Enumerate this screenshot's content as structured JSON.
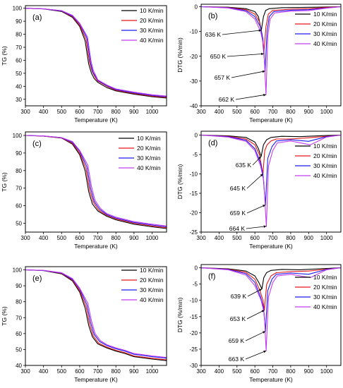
{
  "chart_data": [
    {
      "type": "line",
      "panel_label": "(a)",
      "xlabel": "Temperature (K)",
      "ylabel": "TG (%)",
      "xlim": [
        300,
        1080
      ],
      "ylim": [
        25,
        102
      ],
      "xticks": [
        300,
        400,
        500,
        600,
        700,
        800,
        900,
        1000
      ],
      "yticks": [
        30,
        40,
        50,
        60,
        70,
        80,
        90,
        100
      ],
      "legend": "top-right",
      "series": [
        {
          "name": "10 K/min",
          "color": "#000000",
          "x": [
            300,
            400,
            500,
            560,
            600,
            630,
            650,
            665,
            680,
            700,
            750,
            800,
            900,
            1000,
            1080
          ],
          "y": [
            100,
            99.5,
            97.5,
            93,
            86,
            75,
            57,
            50,
            46,
            43,
            39,
            36.5,
            34,
            32,
            31
          ]
        },
        {
          "name": "20 K/min",
          "color": "#e8171a",
          "x": [
            300,
            400,
            500,
            560,
            600,
            635,
            655,
            670,
            685,
            700,
            750,
            800,
            900,
            1000,
            1080
          ],
          "y": [
            100,
            99.5,
            97.8,
            93.5,
            87,
            76,
            58,
            51,
            47,
            44,
            40,
            37,
            34.5,
            32.5,
            31.5
          ]
        },
        {
          "name": "30 K/min",
          "color": "#1c1cf0",
          "x": [
            300,
            400,
            500,
            560,
            600,
            640,
            660,
            673,
            688,
            700,
            750,
            800,
            900,
            1000,
            1080
          ],
          "y": [
            100,
            99.5,
            98,
            94,
            88,
            77,
            58,
            51,
            47.5,
            44.5,
            40.5,
            37.5,
            35,
            33,
            32
          ]
        },
        {
          "name": "40 K/min",
          "color": "#c43cf0",
          "x": [
            300,
            400,
            500,
            560,
            600,
            643,
            663,
            676,
            690,
            700,
            750,
            800,
            900,
            1000,
            1080
          ],
          "y": [
            100,
            99.6,
            98.2,
            94.5,
            88.5,
            78,
            59,
            52,
            48,
            45,
            41,
            38,
            35.5,
            33.5,
            32.5
          ]
        }
      ]
    },
    {
      "type": "line",
      "panel_label": "(b)",
      "xlabel": "Temperature (K)",
      "ylabel": "DTG (%/min)",
      "xlim": [
        300,
        1080
      ],
      "ylim": [
        -40,
        1
      ],
      "xticks": [
        300,
        400,
        500,
        600,
        700,
        800,
        900,
        1000
      ],
      "yticks": [
        0,
        -10,
        -20,
        -30,
        -40
      ],
      "legend": "top-right",
      "annotations": [
        {
          "text": "636 K",
          "x": 636,
          "y": -9.5
        },
        {
          "text": "650 K",
          "x": 650,
          "y": -19
        },
        {
          "text": "657 K",
          "x": 657,
          "y": -26
        },
        {
          "text": "662 K",
          "x": 662,
          "y": -35.5
        }
      ],
      "series": [
        {
          "name": "10 K/min",
          "color": "#000000",
          "x": [
            300,
            450,
            550,
            600,
            620,
            636,
            648,
            660,
            680,
            750,
            850,
            1000,
            1080
          ],
          "y": [
            0,
            -0.2,
            -0.8,
            -2,
            -4,
            -9.5,
            -4,
            -1.5,
            -0.8,
            -0.4,
            -0.3,
            -0.1,
            0
          ]
        },
        {
          "name": "20 K/min",
          "color": "#e8171a",
          "x": [
            300,
            450,
            550,
            600,
            625,
            640,
            650,
            662,
            675,
            700,
            800,
            900,
            1000,
            1080
          ],
          "y": [
            0,
            -0.3,
            -1.2,
            -3,
            -6,
            -11,
            -19,
            -8,
            -3,
            -1.5,
            -1,
            -0.8,
            -0.3,
            0
          ]
        },
        {
          "name": "30 K/min",
          "color": "#1c1cf0",
          "x": [
            300,
            450,
            550,
            600,
            630,
            645,
            657,
            668,
            680,
            705,
            800,
            900,
            1000,
            1080
          ],
          "y": [
            0,
            -0.4,
            -1.6,
            -4,
            -8,
            -13,
            -26,
            -10,
            -4,
            -2,
            -1.4,
            -1.2,
            -0.5,
            0
          ]
        },
        {
          "name": "40 K/min",
          "color": "#c43cf0",
          "x": [
            300,
            450,
            550,
            600,
            632,
            650,
            662,
            672,
            685,
            710,
            800,
            900,
            1000,
            1080
          ],
          "y": [
            0,
            -0.5,
            -2,
            -5,
            -10,
            -16,
            -35.5,
            -12,
            -5,
            -2.5,
            -1.8,
            -1.6,
            -0.6,
            0
          ]
        }
      ]
    },
    {
      "type": "line",
      "panel_label": "(c)",
      "xlabel": "Temperature (K)",
      "ylabel": "TG (%)",
      "xlim": [
        300,
        1080
      ],
      "ylim": [
        45,
        102
      ],
      "xticks": [
        300,
        400,
        500,
        600,
        700,
        800,
        900,
        1000
      ],
      "yticks": [
        50,
        60,
        70,
        80,
        90,
        100
      ],
      "legend": "top-right",
      "series": [
        {
          "name": "10 K/min",
          "color": "#000000",
          "x": [
            300,
            400,
            500,
            560,
            600,
            630,
            650,
            670,
            700,
            750,
            800,
            900,
            1000,
            1080
          ],
          "y": [
            100,
            99.6,
            98.5,
            95,
            89,
            80,
            68,
            61,
            57,
            54,
            52,
            49.5,
            48,
            47
          ]
        },
        {
          "name": "20 K/min",
          "color": "#e8171a",
          "x": [
            300,
            400,
            500,
            560,
            600,
            635,
            655,
            675,
            705,
            750,
            800,
            900,
            1000,
            1080
          ],
          "y": [
            100,
            99.6,
            98.6,
            95.5,
            90,
            81,
            69,
            62,
            57.5,
            54.5,
            52.5,
            50,
            48.5,
            47.5
          ]
        },
        {
          "name": "30 K/min",
          "color": "#1c1cf0",
          "x": [
            300,
            400,
            500,
            560,
            600,
            640,
            660,
            680,
            710,
            750,
            800,
            900,
            1000,
            1080
          ],
          "y": [
            100,
            99.7,
            98.7,
            96,
            91,
            82,
            70,
            62.5,
            58,
            55,
            53,
            50.5,
            49,
            48
          ]
        },
        {
          "name": "40 K/min",
          "color": "#c43cf0",
          "x": [
            300,
            400,
            500,
            560,
            600,
            645,
            665,
            685,
            715,
            750,
            800,
            900,
            1000,
            1080
          ],
          "y": [
            100,
            99.7,
            98.8,
            96.5,
            91.5,
            83,
            71,
            63,
            58.5,
            55.5,
            53.5,
            51,
            49.5,
            48.5
          ]
        }
      ]
    },
    {
      "type": "line",
      "panel_label": "(d)",
      "xlabel": "Temperature (K)",
      "ylabel": "DTG (%/min)",
      "xlim": [
        300,
        1080
      ],
      "ylim": [
        -25,
        1
      ],
      "xticks": [
        300,
        400,
        500,
        600,
        700,
        800,
        900,
        1000
      ],
      "yticks": [
        0,
        -5,
        -10,
        -15,
        -20,
        -25
      ],
      "legend": "top-right",
      "annotations": [
        {
          "text": "635 K",
          "x": 635,
          "y": -5.5
        },
        {
          "text": "645 K",
          "x": 645,
          "y": -10
        },
        {
          "text": "659 K",
          "x": 659,
          "y": -18
        },
        {
          "text": "664 K",
          "x": 664,
          "y": -23.5
        }
      ],
      "series": [
        {
          "name": "10 K/min",
          "color": "#000000",
          "x": [
            300,
            450,
            550,
            600,
            620,
            635,
            648,
            665,
            690,
            750,
            850,
            1000,
            1080
          ],
          "y": [
            0,
            -0.2,
            -0.6,
            -1.8,
            -3.5,
            -5.5,
            -2.5,
            -1.2,
            -0.6,
            -0.3,
            -0.4,
            -0.1,
            0
          ]
        },
        {
          "name": "20 K/min",
          "color": "#e8171a",
          "x": [
            300,
            450,
            550,
            600,
            625,
            645,
            655,
            668,
            690,
            720,
            800,
            900,
            1000,
            1080
          ],
          "y": [
            0,
            -0.3,
            -1,
            -2.5,
            -5,
            -10,
            -4,
            -2.5,
            -1.5,
            -1,
            -1,
            -0.7,
            -0.3,
            0
          ]
        },
        {
          "name": "30 K/min",
          "color": "#1c1cf0",
          "x": [
            300,
            450,
            550,
            600,
            630,
            645,
            659,
            672,
            695,
            720,
            800,
            900,
            1000,
            1080
          ],
          "y": [
            0,
            -0.4,
            -1.3,
            -3.5,
            -7,
            -10,
            -18,
            -6,
            -3,
            -1.5,
            -1.2,
            -1.6,
            -0.4,
            0
          ]
        },
        {
          "name": "40 K/min",
          "color": "#c43cf0",
          "x": [
            300,
            450,
            550,
            600,
            632,
            650,
            664,
            676,
            700,
            725,
            800,
            910,
            1000,
            1080
          ],
          "y": [
            0,
            -0.5,
            -1.6,
            -4,
            -8,
            -12,
            -23.5,
            -8,
            -4,
            -2,
            -1.5,
            -2.5,
            -0.5,
            0
          ]
        }
      ]
    },
    {
      "type": "line",
      "panel_label": "(e)",
      "xlabel": "Temperature (K)",
      "ylabel": "TG (%)",
      "xlim": [
        300,
        1080
      ],
      "ylim": [
        40,
        102
      ],
      "xticks": [
        300,
        400,
        500,
        600,
        700,
        800,
        900,
        1000
      ],
      "yticks": [
        40,
        50,
        60,
        70,
        80,
        90,
        100
      ],
      "legend": "top-right",
      "series": [
        {
          "name": "10 K/min",
          "color": "#000000",
          "x": [
            300,
            400,
            500,
            560,
            600,
            630,
            650,
            670,
            700,
            750,
            800,
            850,
            900,
            1000,
            1080
          ],
          "y": [
            100,
            99.5,
            97.5,
            93,
            86,
            76,
            65,
            58,
            53.5,
            51,
            49,
            47.5,
            45.5,
            44,
            43
          ]
        },
        {
          "name": "20 K/min",
          "color": "#e8171a",
          "x": [
            300,
            400,
            500,
            560,
            600,
            635,
            655,
            675,
            705,
            750,
            800,
            850,
            900,
            1000,
            1080
          ],
          "y": [
            100,
            99.6,
            97.8,
            93.5,
            87,
            77,
            66,
            58.5,
            54,
            51.5,
            49.5,
            48,
            46,
            44.5,
            43.5
          ]
        },
        {
          "name": "30 K/min",
          "color": "#1c1cf0",
          "x": [
            300,
            400,
            500,
            560,
            600,
            640,
            660,
            680,
            710,
            750,
            800,
            850,
            900,
            1000,
            1080
          ],
          "y": [
            100,
            99.6,
            98,
            94,
            88,
            78,
            67,
            59.5,
            55,
            52.5,
            50.5,
            49,
            47,
            45.5,
            44.5
          ]
        },
        {
          "name": "40 K/min",
          "color": "#c43cf0",
          "x": [
            300,
            400,
            500,
            560,
            600,
            645,
            665,
            685,
            715,
            750,
            800,
            850,
            900,
            1000,
            1080
          ],
          "y": [
            100,
            99.7,
            98.2,
            94.5,
            88.5,
            79,
            68,
            60,
            55.5,
            53,
            51,
            49.5,
            47.5,
            46,
            45
          ]
        }
      ]
    },
    {
      "type": "line",
      "panel_label": "(f)",
      "xlabel": "Temperature (K)",
      "ylabel": "DTG (%/min)",
      "xlim": [
        300,
        1080
      ],
      "ylim": [
        -30,
        1
      ],
      "xticks": [
        300,
        400,
        500,
        600,
        700,
        800,
        900,
        1000
      ],
      "yticks": [
        0,
        -5,
        -10,
        -15,
        -20,
        -25,
        -30
      ],
      "legend": "top-right",
      "annotations": [
        {
          "text": "639 K",
          "x": 639,
          "y": -6.5
        },
        {
          "text": "653 K",
          "x": 653,
          "y": -13
        },
        {
          "text": "659 K",
          "x": 659,
          "y": -19.5
        },
        {
          "text": "663 K",
          "x": 663,
          "y": -25.5
        }
      ],
      "series": [
        {
          "name": "10 K/min",
          "color": "#000000",
          "x": [
            300,
            450,
            550,
            600,
            622,
            639,
            650,
            665,
            690,
            750,
            850,
            1000,
            1080
          ],
          "y": [
            0,
            -0.3,
            -1,
            -2.5,
            -4.5,
            -6.5,
            -3,
            -1.5,
            -0.8,
            -0.5,
            -0.6,
            -0.2,
            0
          ]
        },
        {
          "name": "20 K/min",
          "color": "#e8171a",
          "x": [
            300,
            450,
            550,
            600,
            628,
            645,
            653,
            666,
            690,
            720,
            800,
            900,
            1000,
            1080
          ],
          "y": [
            0,
            -0.4,
            -1.4,
            -3.5,
            -7,
            -10,
            -13,
            -5,
            -2.5,
            -1.5,
            -1.2,
            -1,
            -0.4,
            0
          ]
        },
        {
          "name": "30 K/min",
          "color": "#1c1cf0",
          "x": [
            300,
            450,
            550,
            600,
            632,
            648,
            659,
            672,
            695,
            720,
            800,
            900,
            1000,
            1080
          ],
          "y": [
            0,
            -0.5,
            -1.8,
            -4.5,
            -9,
            -12,
            -19.5,
            -7,
            -3.5,
            -2,
            -1.6,
            -2,
            -0.5,
            0
          ]
        },
        {
          "name": "40 K/min",
          "color": "#c43cf0",
          "x": [
            300,
            450,
            550,
            600,
            635,
            652,
            663,
            676,
            700,
            725,
            800,
            910,
            1000,
            1080
          ],
          "y": [
            0,
            -0.6,
            -2.2,
            -5.5,
            -10,
            -14,
            -25.5,
            -9,
            -4.5,
            -2.5,
            -2,
            -3,
            -0.6,
            0
          ]
        }
      ]
    }
  ]
}
